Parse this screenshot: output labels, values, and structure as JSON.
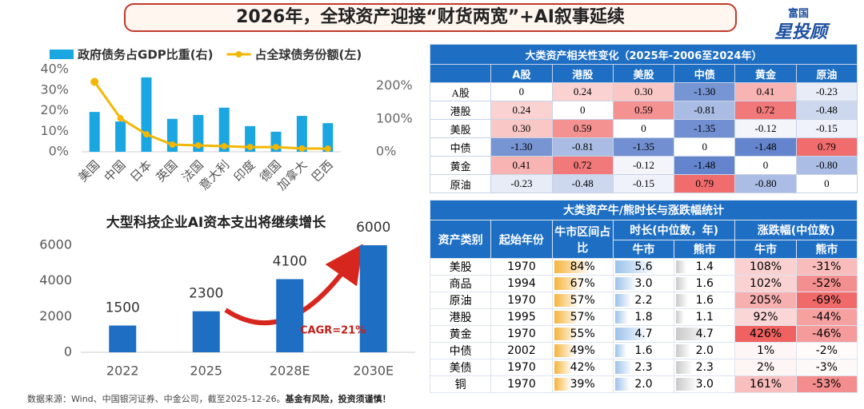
{
  "header": {
    "title": "2026年，全球资产迎接“财货两宽”+AI叙事延续",
    "logo_top": "富国",
    "logo_main": "星投顾"
  },
  "chart_data": [
    {
      "type": "combo",
      "categories": [
        "美国",
        "中国",
        "日本",
        "英国",
        "法国",
        "意大利",
        "印度",
        "德国",
        "加拿大",
        "巴西"
      ],
      "series": [
        {
          "name": "政府债务占GDP比重(右)",
          "type": "bar",
          "axis": "y2",
          "color": "#1aa6e0",
          "values": [
            121,
            92,
            226,
            100,
            112,
            134,
            78,
            61,
            109,
            87
          ]
        },
        {
          "name": "占全球债务份额(左)",
          "type": "line",
          "color": "#f2b705",
          "values": [
            34,
            16.3,
            8.5,
            3.5,
            3.1,
            2.7,
            2.3,
            2.3,
            1.6,
            1.5
          ]
        }
      ],
      "ylim": [
        0,
        40
      ],
      "yticks": [
        {
          "value": 0,
          "label": "0%"
        },
        {
          "value": 10,
          "label": "10%"
        },
        {
          "value": 20,
          "label": "20%"
        },
        {
          "value": 30,
          "label": "30%"
        },
        {
          "value": 40,
          "label": "40%"
        }
      ],
      "y2lim": [
        0,
        250
      ],
      "y2ticks": [
        {
          "value": 0,
          "label": "0%"
        },
        {
          "value": 100,
          "label": "100%"
        },
        {
          "value": 200,
          "label": "200%"
        }
      ]
    },
    {
      "type": "bar",
      "title": "大型科技企业AI资本支出将继续增长",
      "categories": [
        "2022",
        "2025",
        "2028E",
        "2030E"
      ],
      "values": [
        1500,
        2300,
        4100,
        6000
      ],
      "color": "#1e6fc4",
      "ylim": [
        0,
        6600
      ],
      "yticks": [
        0,
        2000,
        4000,
        6000
      ],
      "annotation": "CAGR=21%"
    }
  ],
  "tables": [
    {
      "title": "大类资产相关性变化（2025年-2006至2024年）",
      "columns": [
        "A股",
        "港股",
        "美股",
        "中债",
        "黄金",
        "原油"
      ],
      "rows": [
        [
          "A股",
          "0",
          "0.24",
          "0.30",
          "-1.30",
          "0.41",
          "-0.23"
        ],
        [
          "港股",
          "0.24",
          "0",
          "0.59",
          "-0.81",
          "0.72",
          "-0.48"
        ],
        [
          "美股",
          "0.30",
          "0.59",
          "0",
          "-1.35",
          "-0.12",
          "-0.15"
        ],
        [
          "中债",
          "-1.30",
          "-0.81",
          "-1.35",
          "0",
          "-1.48",
          "0.79"
        ],
        [
          "黄金",
          "0.41",
          "0.72",
          "-0.12",
          "-1.48",
          "0",
          "-0.80"
        ],
        [
          "原油",
          "-0.23",
          "-0.48",
          "-0.15",
          "0.79",
          "-0.80",
          "0"
        ]
      ]
    },
    {
      "title": "大类资产牛/熊时长与涨跌幅统计",
      "header_top": [
        "资产类别",
        "起始年份",
        "牛市区间占比",
        "时长(中位数，年)",
        "涨跌幅(中位数)"
      ],
      "header_sub": [
        "牛市",
        "熊市",
        "牛市",
        "熊市"
      ],
      "rows": [
        [
          "美股",
          "1970",
          "84%",
          "5.6",
          "1.4",
          "108%",
          "-31%"
        ],
        [
          "商品",
          "1994",
          "67%",
          "3.0",
          "1.6",
          "102%",
          "-52%"
        ],
        [
          "原油",
          "1970",
          "57%",
          "2.2",
          "1.6",
          "205%",
          "-69%"
        ],
        [
          "港股",
          "1995",
          "57%",
          "1.8",
          "1.1",
          "92%",
          "-44%"
        ],
        [
          "黄金",
          "1970",
          "55%",
          "4.7",
          "4.7",
          "426%",
          "-46%"
        ],
        [
          "中债",
          "2002",
          "49%",
          "1.6",
          "2.0",
          "1%",
          "-2%"
        ],
        [
          "美债",
          "1970",
          "42%",
          "2.3",
          "2.3",
          "2%",
          "-3%"
        ],
        [
          "铜",
          "1970",
          "39%",
          "2.0",
          "3.0",
          "161%",
          "-53%"
        ]
      ]
    }
  ],
  "footer": {
    "source": "数据来源：Wind、中国银河证券、中金公司，截至2025-12-26。",
    "warning": "基金有风险，投资须谨慎！"
  }
}
